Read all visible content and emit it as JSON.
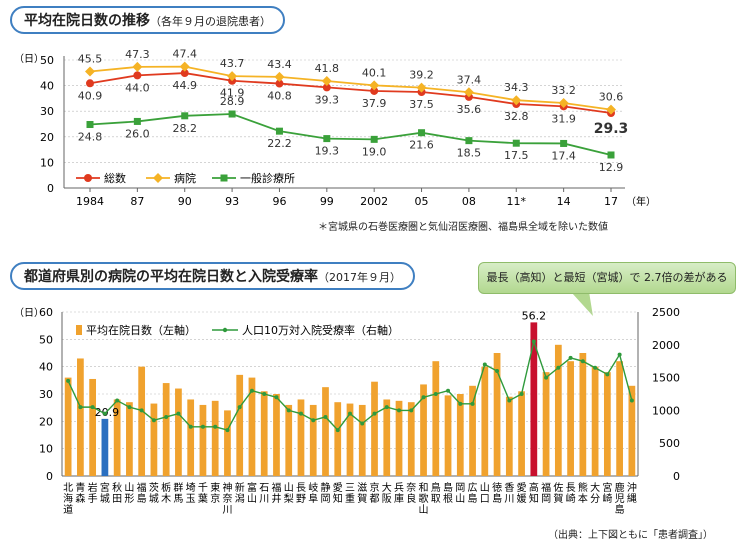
{
  "top": {
    "title": "平均在院日数の推移",
    "subtitle": "（各年９月の退院患者）",
    "note": "＊宮城県の石巻医療圏と気仙沼医療圏、福島県全域を除いた数値"
  },
  "bottom": {
    "title": "都道府県別の病院の平均在院日数と入院受療率",
    "subtitle": "（2017年９月）",
    "callout": "最長（高知）と最短（宮城）で 2.7倍の差がある"
  },
  "source": "（出典：上下図ともに「患者調査」）",
  "colors": {
    "total": "#e03a1f",
    "hospital": "#f5b325",
    "clinic": "#3aa13a",
    "bar": "#f0a22e",
    "bar_max": "#c8102e",
    "bar_min": "#2a6fc0",
    "rate_line": "#2f9a3c",
    "frame": "#3f7fc1"
  },
  "chart_data": [
    {
      "type": "line",
      "ylabel": "（日）",
      "xlabel_unit": "（年）",
      "ylim": [
        0,
        50
      ],
      "yticks": [
        "0",
        "10",
        "20",
        "30",
        "40",
        "50"
      ],
      "categories": [
        "1984",
        "87",
        "90",
        "93",
        "96",
        "99",
        "2002",
        "05",
        "08",
        "11*",
        "14",
        "17"
      ],
      "series": [
        {
          "name": "総数",
          "values": [
            40.9,
            44.0,
            44.9,
            41.9,
            40.8,
            39.3,
            37.9,
            37.5,
            35.6,
            32.8,
            31.9,
            29.3
          ],
          "labels": [
            "40.9",
            "44.0",
            "44.9",
            "41.9",
            "40.8",
            "39.3",
            "37.9",
            "37.5",
            "35.6",
            "32.8",
            "31.9",
            "29.3"
          ]
        },
        {
          "name": "病院",
          "values": [
            45.5,
            47.3,
            47.4,
            43.7,
            43.4,
            41.8,
            40.1,
            39.2,
            37.4,
            34.3,
            33.2,
            30.6
          ],
          "labels": [
            "45.5",
            "47.3",
            "47.4",
            "43.7",
            "43.4",
            "41.8",
            "40.1",
            "39.2",
            "37.4",
            "34.3",
            "33.2",
            "30.6"
          ]
        },
        {
          "name": "一般診療所",
          "values": [
            24.8,
            26.0,
            28.2,
            28.9,
            22.2,
            19.3,
            19.0,
            21.6,
            18.5,
            17.5,
            17.4,
            12.9
          ],
          "labels": [
            "24.8",
            "26.0",
            "28.2",
            "28.9",
            "22.2",
            "19.3",
            "19.0",
            "21.6",
            "18.5",
            "17.5",
            "17.4",
            "12.9"
          ]
        }
      ],
      "legend_position": "bottom-left"
    },
    {
      "type": "bar",
      "ylabel": "（日）",
      "ylim_left": [
        0,
        60
      ],
      "ylim_right": [
        0,
        2500
      ],
      "yticks_left": [
        "0",
        "10",
        "20",
        "30",
        "40",
        "50",
        "60"
      ],
      "yticks_right": [
        "0",
        "500",
        "1000",
        "1500",
        "2000",
        "2500"
      ],
      "categories": [
        "北海道",
        "青森",
        "岩手",
        "宮城",
        "秋田",
        "山形",
        "福島",
        "茨城",
        "栃木",
        "群馬",
        "埼玉",
        "千葉",
        "東京",
        "神奈川",
        "新潟",
        "富山",
        "石川",
        "福井",
        "山梨",
        "長野",
        "岐阜",
        "静岡",
        "愛知",
        "三重",
        "滋賀",
        "京都",
        "大阪",
        "兵庫",
        "奈良",
        "和歌山",
        "鳥取",
        "島根",
        "岡山",
        "広島",
        "山口",
        "徳島",
        "香川",
        "愛媛",
        "高知",
        "福岡",
        "佐賀",
        "長崎",
        "熊本",
        "大分",
        "宮崎",
        "鹿児島",
        "沖縄"
      ],
      "series": [
        {
          "name": "平均在院日数（左軸）",
          "values": [
            36,
            43,
            35.5,
            20.9,
            28,
            27,
            40,
            26.5,
            34,
            32,
            28,
            26,
            27.5,
            24,
            37,
            36,
            31,
            30,
            26,
            28,
            26,
            32.5,
            27,
            26.5,
            26,
            34.5,
            28,
            27.5,
            27,
            33.5,
            42,
            29.5,
            30,
            33,
            40,
            45,
            29,
            31,
            56.2,
            38,
            48,
            42,
            45,
            40,
            38,
            42,
            33
          ]
        },
        {
          "name": "人口10万対入院受療率（右軸）",
          "values": [
            1450,
            1050,
            1050,
            950,
            1150,
            1050,
            1000,
            850,
            900,
            950,
            750,
            750,
            750,
            700,
            1050,
            1300,
            1250,
            1200,
            1000,
            950,
            850,
            900,
            700,
            950,
            800,
            950,
            1050,
            1000,
            1000,
            1200,
            1250,
            1300,
            1100,
            1100,
            1700,
            1600,
            1150,
            1250,
            2050,
            1500,
            1650,
            1800,
            1750,
            1650,
            1550,
            1850,
            1150
          ]
        }
      ],
      "labels": {
        "max": "56.2",
        "min": "20.9"
      },
      "highlight": {
        "max": "高知",
        "min": "宮城"
      },
      "legend_position": "top-left"
    }
  ]
}
